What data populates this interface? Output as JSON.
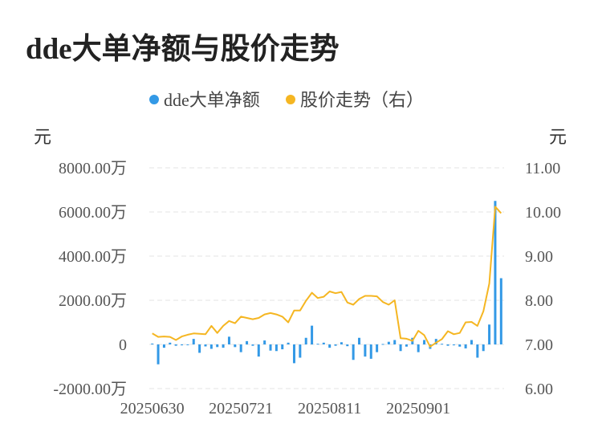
{
  "title": "dde大单净额与股价走势",
  "chart_data": {
    "type": "bar+line",
    "legend": [
      {
        "name": "dde大单净额",
        "color": "#3399e6"
      },
      {
        "name": "股价走势（右）",
        "color": "#f5b622"
      }
    ],
    "left_axis": {
      "unit": "元",
      "min": -2000,
      "max": 8000,
      "ticks": [
        {
          "value": 8000,
          "label": "8000.00万"
        },
        {
          "value": 6000,
          "label": "6000.00万"
        },
        {
          "value": 4000,
          "label": "4000.00万"
        },
        {
          "value": 2000,
          "label": "2000.00万"
        },
        {
          "value": 0,
          "label": "0"
        },
        {
          "value": -2000,
          "label": "-2000.00万"
        }
      ]
    },
    "right_axis": {
      "unit": "元",
      "min": 6.0,
      "max": 11.0,
      "ticks": [
        {
          "value": 11.0,
          "label": "11.00"
        },
        {
          "value": 10.0,
          "label": "10.00"
        },
        {
          "value": 9.0,
          "label": "9.00"
        },
        {
          "value": 8.0,
          "label": "8.00"
        },
        {
          "value": 7.0,
          "label": "7.00"
        },
        {
          "value": 6.0,
          "label": "6.00"
        }
      ]
    },
    "x_tick_labels": [
      {
        "index": 0,
        "label": "20250630"
      },
      {
        "index": 15,
        "label": "20250721"
      },
      {
        "index": 30,
        "label": "20250811"
      },
      {
        "index": 45,
        "label": "20250901"
      }
    ],
    "grid": true,
    "legend_position": "top-center",
    "bar_values": [
      40,
      -900,
      -150,
      80,
      -60,
      -40,
      -30,
      250,
      -380,
      -90,
      -200,
      -120,
      -150,
      350,
      -120,
      -350,
      150,
      -60,
      -550,
      180,
      -280,
      -300,
      -220,
      80,
      -850,
      -600,
      300,
      850,
      30,
      80,
      -150,
      -60,
      100,
      -80,
      -700,
      300,
      -550,
      -650,
      -350,
      20,
      120,
      200,
      -300,
      -100,
      300,
      -350,
      200,
      -200,
      250,
      30,
      -60,
      -40,
      -100,
      -180,
      200,
      -600,
      -300,
      900,
      6500,
      3000
    ],
    "line_values": [
      7.25,
      7.17,
      7.18,
      7.17,
      7.1,
      7.18,
      7.22,
      7.25,
      7.24,
      7.23,
      7.42,
      7.26,
      7.42,
      7.53,
      7.48,
      7.63,
      7.6,
      7.57,
      7.6,
      7.68,
      7.71,
      7.68,
      7.63,
      7.5,
      7.77,
      7.77,
      7.99,
      8.17,
      8.05,
      8.08,
      8.2,
      8.16,
      8.19,
      7.95,
      7.9,
      8.03,
      8.1,
      8.1,
      8.09,
      7.96,
      7.9,
      8.0,
      7.14,
      7.13,
      7.08,
      7.31,
      7.21,
      6.95,
      7.04,
      7.12,
      7.3,
      7.23,
      7.26,
      7.5,
      7.51,
      7.42,
      7.75,
      8.38,
      10.12,
      9.97
    ]
  }
}
